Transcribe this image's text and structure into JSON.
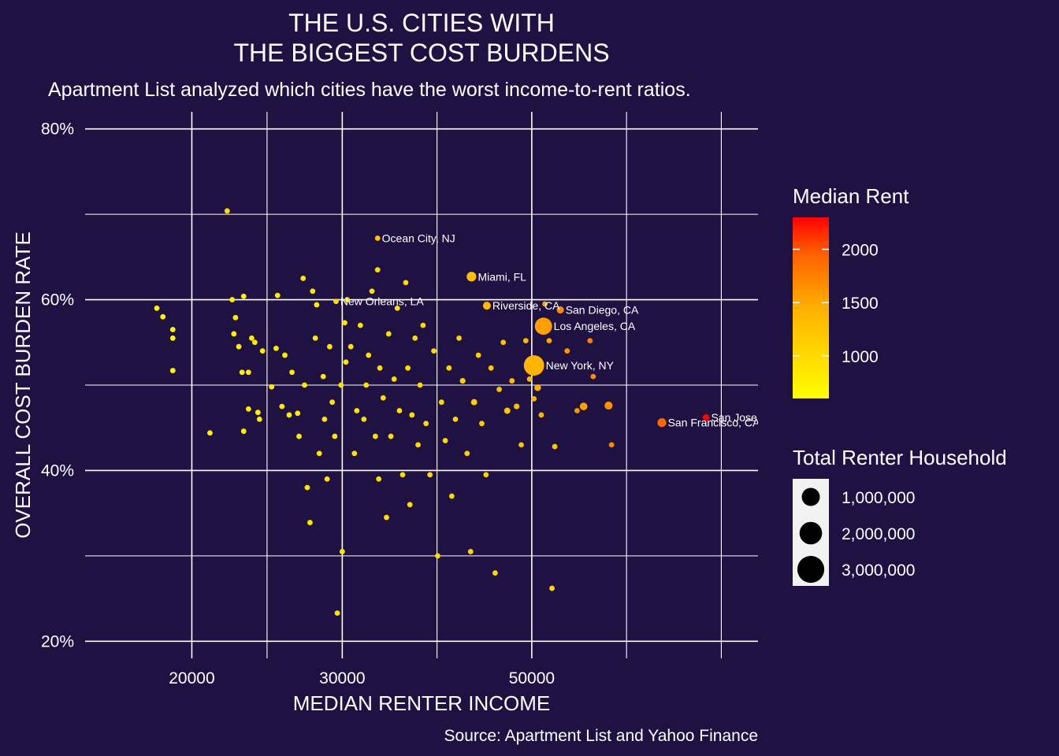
{
  "chart_data": {
    "type": "scatter",
    "title_lines": [
      "THE U.S. CITIES WITH",
      "THE BIGGEST COST BURDENS"
    ],
    "subtitle": "Apartment List analyzed which cities have the worst income-to-rent ratios.",
    "xlabel": "MEDIAN RENTER INCOME",
    "ylabel": "OVERALL COST BURDEN RATE",
    "caption": "Source: Apartment List and Yahoo Finance",
    "x_scale": "log10",
    "xlim": [
      15000,
      92000
    ],
    "ylim": [
      0.18,
      0.82
    ],
    "x_ticks": [
      {
        "value": 20000,
        "label": "20000"
      },
      {
        "value": 30000,
        "label": "30000"
      },
      {
        "value": 50000,
        "label": "50000"
      }
    ],
    "y_ticks": [
      {
        "value": 0.2,
        "label": "20%"
      },
      {
        "value": 0.4,
        "label": "40%"
      },
      {
        "value": 0.6,
        "label": "60%"
      },
      {
        "value": 0.8,
        "label": "80%"
      }
    ],
    "grid": true,
    "legend_position": "right",
    "colors": {
      "background": "#1f1243",
      "grid": "#ffffff",
      "text": "#ffffff",
      "low": "#ffff00",
      "high": "#ff0000"
    },
    "color_legend": {
      "title": "Median Rent",
      "min": 600,
      "max": 2300,
      "ticks": [
        2000,
        1500,
        1000
      ]
    },
    "size_legend": {
      "title": "Total Renter Household",
      "entries": [
        {
          "value": 1000000,
          "label": "1,000,000"
        },
        {
          "value": 2000000,
          "label": "2,000,000"
        },
        {
          "value": 3000000,
          "label": "3,000,000"
        }
      ]
    },
    "labeled_points": [
      {
        "label": "Ocean City, NJ",
        "x": 33000,
        "y": 0.672,
        "rent": 1250,
        "households": 20000
      },
      {
        "label": "Miami, FL",
        "x": 42500,
        "y": 0.627,
        "rent": 1300,
        "households": 720000
      },
      {
        "label": "New Orleans, LA",
        "x": 29500,
        "y": 0.598,
        "rent": 1000,
        "households": 180000
      },
      {
        "label": "Riverside, CA",
        "x": 44300,
        "y": 0.593,
        "rent": 1350,
        "households": 480000
      },
      {
        "label": "San Diego, CA",
        "x": 54000,
        "y": 0.588,
        "rent": 1700,
        "households": 400000
      },
      {
        "label": "Los Angeles, CA",
        "x": 51600,
        "y": 0.569,
        "rent": 1550,
        "households": 2300000
      },
      {
        "label": "New York, NY",
        "x": 50300,
        "y": 0.523,
        "rent": 1400,
        "households": 3200000
      },
      {
        "label": "San Francisco, CA",
        "x": 71000,
        "y": 0.456,
        "rent": 1900,
        "households": 600000
      },
      {
        "label": "San Jose, CA",
        "x": 80000,
        "y": 0.462,
        "rent": 2300,
        "households": 350000
      }
    ],
    "points": [
      {
        "x": 18200,
        "y": 0.59,
        "rent": 650,
        "households": 60000
      },
      {
        "x": 18500,
        "y": 0.58,
        "rent": 700,
        "households": 50000
      },
      {
        "x": 19000,
        "y": 0.565,
        "rent": 680,
        "households": 40000
      },
      {
        "x": 19000,
        "y": 0.555,
        "rent": 650,
        "households": 30000
      },
      {
        "x": 19000,
        "y": 0.517,
        "rent": 700,
        "households": 30000
      },
      {
        "x": 21000,
        "y": 0.444,
        "rent": 720,
        "households": 40000
      },
      {
        "x": 22000,
        "y": 0.704,
        "rent": 1000,
        "households": 30000
      },
      {
        "x": 22300,
        "y": 0.6,
        "rent": 800,
        "households": 50000
      },
      {
        "x": 22500,
        "y": 0.579,
        "rent": 780,
        "households": 40000
      },
      {
        "x": 22400,
        "y": 0.56,
        "rent": 760,
        "households": 40000
      },
      {
        "x": 22700,
        "y": 0.545,
        "rent": 760,
        "households": 50000
      },
      {
        "x": 23000,
        "y": 0.604,
        "rent": 780,
        "households": 40000
      },
      {
        "x": 22900,
        "y": 0.515,
        "rent": 740,
        "households": 30000
      },
      {
        "x": 23300,
        "y": 0.515,
        "rent": 760,
        "households": 40000
      },
      {
        "x": 23000,
        "y": 0.446,
        "rent": 760,
        "households": 30000
      },
      {
        "x": 23500,
        "y": 0.555,
        "rent": 800,
        "households": 60000
      },
      {
        "x": 23700,
        "y": 0.55,
        "rent": 820,
        "households": 60000
      },
      {
        "x": 23300,
        "y": 0.472,
        "rent": 760,
        "households": 40000
      },
      {
        "x": 23900,
        "y": 0.468,
        "rent": 780,
        "households": 50000
      },
      {
        "x": 24000,
        "y": 0.46,
        "rent": 780,
        "households": 40000
      },
      {
        "x": 24200,
        "y": 0.54,
        "rent": 800,
        "households": 40000
      },
      {
        "x": 24800,
        "y": 0.498,
        "rent": 820,
        "households": 40000
      },
      {
        "x": 25100,
        "y": 0.543,
        "rent": 800,
        "households": 40000
      },
      {
        "x": 25200,
        "y": 0.605,
        "rent": 800,
        "households": 40000
      },
      {
        "x": 25500,
        "y": 0.475,
        "rent": 820,
        "households": 40000
      },
      {
        "x": 25700,
        "y": 0.535,
        "rent": 820,
        "households": 40000
      },
      {
        "x": 26000,
        "y": 0.465,
        "rent": 800,
        "households": 40000
      },
      {
        "x": 26200,
        "y": 0.515,
        "rent": 820,
        "households": 40000
      },
      {
        "x": 26600,
        "y": 0.467,
        "rent": 840,
        "households": 40000
      },
      {
        "x": 26700,
        "y": 0.44,
        "rent": 840,
        "households": 40000
      },
      {
        "x": 27000,
        "y": 0.625,
        "rent": 860,
        "households": 40000
      },
      {
        "x": 27100,
        "y": 0.5,
        "rent": 840,
        "households": 40000
      },
      {
        "x": 27300,
        "y": 0.38,
        "rent": 860,
        "households": 30000
      },
      {
        "x": 27500,
        "y": 0.339,
        "rent": 860,
        "households": 30000
      },
      {
        "x": 27700,
        "y": 0.61,
        "rent": 860,
        "households": 40000
      },
      {
        "x": 27900,
        "y": 0.555,
        "rent": 840,
        "households": 40000
      },
      {
        "x": 28000,
        "y": 0.594,
        "rent": 860,
        "households": 40000
      },
      {
        "x": 28200,
        "y": 0.42,
        "rent": 860,
        "households": 30000
      },
      {
        "x": 28500,
        "y": 0.51,
        "rent": 880,
        "households": 40000
      },
      {
        "x": 28600,
        "y": 0.46,
        "rent": 860,
        "households": 40000
      },
      {
        "x": 28800,
        "y": 0.39,
        "rent": 880,
        "households": 30000
      },
      {
        "x": 29000,
        "y": 0.545,
        "rent": 880,
        "households": 40000
      },
      {
        "x": 29200,
        "y": 0.48,
        "rent": 900,
        "households": 40000
      },
      {
        "x": 29400,
        "y": 0.44,
        "rent": 900,
        "households": 40000
      },
      {
        "x": 29600,
        "y": 0.233,
        "rent": 880,
        "households": 30000
      },
      {
        "x": 29900,
        "y": 0.5,
        "rent": 900,
        "households": 60000
      },
      {
        "x": 30000,
        "y": 0.305,
        "rent": 900,
        "households": 30000
      },
      {
        "x": 30200,
        "y": 0.573,
        "rent": 910,
        "households": 40000
      },
      {
        "x": 30300,
        "y": 0.527,
        "rent": 900,
        "households": 40000
      },
      {
        "x": 30400,
        "y": 0.6,
        "rent": 920,
        "households": 80000
      },
      {
        "x": 30700,
        "y": 0.545,
        "rent": 920,
        "households": 60000
      },
      {
        "x": 31000,
        "y": 0.42,
        "rent": 900,
        "households": 40000
      },
      {
        "x": 31200,
        "y": 0.47,
        "rent": 920,
        "households": 60000
      },
      {
        "x": 31500,
        "y": 0.57,
        "rent": 920,
        "households": 60000
      },
      {
        "x": 31800,
        "y": 0.46,
        "rent": 920,
        "households": 60000
      },
      {
        "x": 32000,
        "y": 0.5,
        "rent": 930,
        "households": 60000
      },
      {
        "x": 32200,
        "y": 0.535,
        "rent": 920,
        "households": 60000
      },
      {
        "x": 32500,
        "y": 0.61,
        "rent": 940,
        "households": 40000
      },
      {
        "x": 32800,
        "y": 0.44,
        "rent": 930,
        "households": 40000
      },
      {
        "x": 33000,
        "y": 0.635,
        "rent": 950,
        "households": 60000
      },
      {
        "x": 33100,
        "y": 0.39,
        "rent": 940,
        "households": 60000
      },
      {
        "x": 33200,
        "y": 0.52,
        "rent": 950,
        "households": 60000
      },
      {
        "x": 33500,
        "y": 0.485,
        "rent": 950,
        "households": 80000
      },
      {
        "x": 33800,
        "y": 0.345,
        "rent": 940,
        "households": 40000
      },
      {
        "x": 34000,
        "y": 0.56,
        "rent": 950,
        "households": 60000
      },
      {
        "x": 34200,
        "y": 0.44,
        "rent": 950,
        "households": 60000
      },
      {
        "x": 34500,
        "y": 0.507,
        "rent": 960,
        "households": 100000
      },
      {
        "x": 34800,
        "y": 0.59,
        "rent": 960,
        "households": 60000
      },
      {
        "x": 35000,
        "y": 0.47,
        "rent": 960,
        "households": 100000
      },
      {
        "x": 35300,
        "y": 0.395,
        "rent": 950,
        "households": 60000
      },
      {
        "x": 35600,
        "y": 0.62,
        "rent": 980,
        "households": 60000
      },
      {
        "x": 35800,
        "y": 0.52,
        "rent": 980,
        "households": 100000
      },
      {
        "x": 36000,
        "y": 0.36,
        "rent": 960,
        "households": 60000
      },
      {
        "x": 36200,
        "y": 0.465,
        "rent": 980,
        "households": 120000
      },
      {
        "x": 36500,
        "y": 0.555,
        "rent": 980,
        "households": 80000
      },
      {
        "x": 36800,
        "y": 0.43,
        "rent": 980,
        "households": 80000
      },
      {
        "x": 37000,
        "y": 0.5,
        "rent": 990,
        "households": 120000
      },
      {
        "x": 37300,
        "y": 0.57,
        "rent": 1000,
        "households": 80000
      },
      {
        "x": 37600,
        "y": 0.455,
        "rent": 990,
        "households": 100000
      },
      {
        "x": 38000,
        "y": 0.395,
        "rent": 990,
        "households": 60000
      },
      {
        "x": 38400,
        "y": 0.54,
        "rent": 1000,
        "households": 100000
      },
      {
        "x": 38800,
        "y": 0.3,
        "rent": 1000,
        "households": 40000
      },
      {
        "x": 39200,
        "y": 0.48,
        "rent": 1020,
        "households": 120000
      },
      {
        "x": 39600,
        "y": 0.435,
        "rent": 1020,
        "households": 80000
      },
      {
        "x": 40000,
        "y": 0.52,
        "rent": 1050,
        "households": 150000
      },
      {
        "x": 40300,
        "y": 0.37,
        "rent": 1020,
        "households": 60000
      },
      {
        "x": 40700,
        "y": 0.46,
        "rent": 1050,
        "households": 150000
      },
      {
        "x": 41100,
        "y": 0.555,
        "rent": 1080,
        "households": 100000
      },
      {
        "x": 41500,
        "y": 0.505,
        "rent": 1100,
        "households": 250000
      },
      {
        "x": 42000,
        "y": 0.42,
        "rent": 1080,
        "households": 100000
      },
      {
        "x": 42400,
        "y": 0.305,
        "rent": 1050,
        "households": 60000
      },
      {
        "x": 42800,
        "y": 0.48,
        "rent": 1150,
        "households": 300000
      },
      {
        "x": 43300,
        "y": 0.535,
        "rent": 1150,
        "households": 150000
      },
      {
        "x": 43700,
        "y": 0.455,
        "rent": 1150,
        "households": 200000
      },
      {
        "x": 44200,
        "y": 0.395,
        "rent": 1100,
        "households": 80000
      },
      {
        "x": 44800,
        "y": 0.52,
        "rent": 1200,
        "households": 200000
      },
      {
        "x": 45300,
        "y": 0.28,
        "rent": 1100,
        "households": 40000
      },
      {
        "x": 45800,
        "y": 0.495,
        "rent": 1250,
        "households": 200000
      },
      {
        "x": 46300,
        "y": 0.55,
        "rent": 1250,
        "households": 150000
      },
      {
        "x": 46800,
        "y": 0.47,
        "rent": 1200,
        "households": 300000
      },
      {
        "x": 47400,
        "y": 0.505,
        "rent": 1300,
        "households": 150000
      },
      {
        "x": 48000,
        "y": 0.475,
        "rent": 1300,
        "households": 250000
      },
      {
        "x": 48600,
        "y": 0.43,
        "rent": 1250,
        "households": 100000
      },
      {
        "x": 49200,
        "y": 0.552,
        "rent": 1350,
        "households": 80000
      },
      {
        "x": 49700,
        "y": 0.507,
        "rent": 1350,
        "households": 100000
      },
      {
        "x": 50300,
        "y": 0.484,
        "rent": 1400,
        "households": 200000
      },
      {
        "x": 50800,
        "y": 0.497,
        "rent": 1450,
        "households": 350000
      },
      {
        "x": 51300,
        "y": 0.465,
        "rent": 1450,
        "households": 80000
      },
      {
        "x": 51800,
        "y": 0.595,
        "rent": 1550,
        "households": 80000
      },
      {
        "x": 52400,
        "y": 0.552,
        "rent": 1500,
        "households": 60000
      },
      {
        "x": 52800,
        "y": 0.262,
        "rent": 1000,
        "households": 40000
      },
      {
        "x": 53200,
        "y": 0.428,
        "rent": 1200,
        "households": 60000
      },
      {
        "x": 55000,
        "y": 0.54,
        "rent": 1600,
        "households": 80000
      },
      {
        "x": 56500,
        "y": 0.47,
        "rent": 1650,
        "households": 60000
      },
      {
        "x": 57500,
        "y": 0.475,
        "rent": 1550,
        "households": 450000
      },
      {
        "x": 58500,
        "y": 0.552,
        "rent": 1750,
        "households": 80000
      },
      {
        "x": 59000,
        "y": 0.51,
        "rent": 1700,
        "households": 60000
      },
      {
        "x": 61500,
        "y": 0.476,
        "rent": 1650,
        "households": 500000
      },
      {
        "x": 62000,
        "y": 0.43,
        "rent": 1700,
        "households": 40000
      }
    ]
  }
}
